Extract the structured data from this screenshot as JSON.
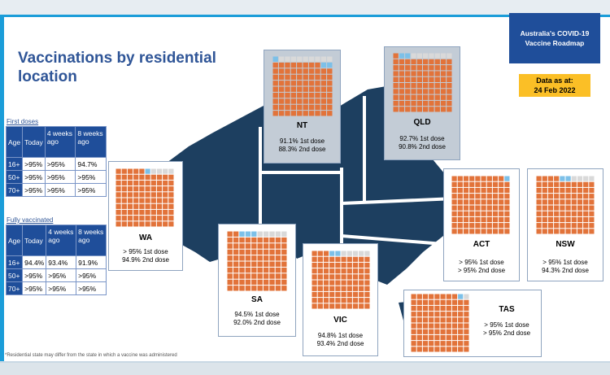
{
  "title": "Vaccinations by residential location",
  "roadmap": {
    "line1": "Australia's COVID-19",
    "line2": "Vaccine Roadmap"
  },
  "as_at": {
    "label": "Data as at:",
    "date": "24 Feb 2022"
  },
  "first_doses": {
    "label": "First doses",
    "headers": [
      "Age",
      "Today",
      "4 weeks ago",
      "8 weeks ago"
    ],
    "rows": [
      [
        "16+",
        ">95%",
        ">95%",
        "94.7%"
      ],
      [
        "50+",
        ">95%",
        ">95%",
        ">95%"
      ],
      [
        "70+",
        ">95%",
        ">95%",
        ">95%"
      ]
    ]
  },
  "fully_vaccinated": {
    "label": "Fully vaccinated",
    "headers": [
      "Age",
      "Today",
      "4 weeks ago",
      "8 weeks ago"
    ],
    "rows": [
      [
        "16+",
        "94.4%",
        "93.4%",
        "91.9%"
      ],
      [
        "50+",
        ">95%",
        ">95%",
        ">95%"
      ],
      [
        "70+",
        ">95%",
        ">95%",
        ">95%"
      ]
    ]
  },
  "chart_data": {
    "type": "waffle",
    "states": [
      {
        "name": "WA",
        "first_dose": "> 95%",
        "second_dose": "94.9%",
        "first_pct": 95.5,
        "second_pct": 94.9
      },
      {
        "name": "NT",
        "first_dose": "91.1%",
        "second_dose": "88.3%",
        "first_pct": 91.1,
        "second_pct": 88.3
      },
      {
        "name": "QLD",
        "first_dose": "92.7%",
        "second_dose": "90.8%",
        "first_pct": 92.7,
        "second_pct": 90.8
      },
      {
        "name": "SA",
        "first_dose": "94.5%",
        "second_dose": "92.0%",
        "first_pct": 94.5,
        "second_pct": 92.0
      },
      {
        "name": "ACT",
        "first_dose": "> 95%",
        "second_dose": "> 95%",
        "first_pct": 99.5,
        "second_pct": 99.0
      },
      {
        "name": "NSW",
        "first_dose": "> 95%",
        "second_dose": "94.3%",
        "first_pct": 95.5,
        "second_pct": 94.3
      },
      {
        "name": "VIC",
        "first_dose": "94.8%",
        "second_dose": "93.4%",
        "first_pct": 94.8,
        "second_pct": 93.4
      },
      {
        "name": "TAS",
        "first_dose": "> 95%",
        "second_dose": "> 95%",
        "first_pct": 98.5,
        "second_pct": 97.5
      }
    ],
    "dose1_suffix": "1st dose",
    "dose2_suffix": "2nd dose"
  },
  "footnote": "*Residential state may differ from the state in which a vaccine was administered",
  "colors": {
    "map": "#1d3f60",
    "fill_second": "#e2733a",
    "fill_first": "#7cc0e8",
    "empty": "#d9d9d9",
    "accent": "#1b9dd9",
    "table_header": "#1f4e9a"
  }
}
